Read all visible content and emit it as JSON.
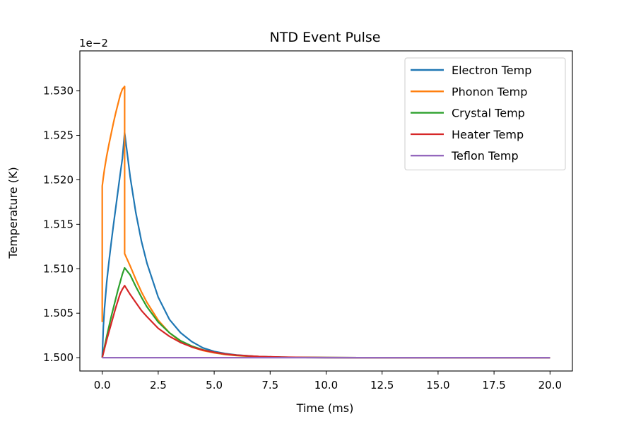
{
  "chart_data": {
    "type": "line",
    "title": "NTD Event Pulse",
    "xlabel": "Time (ms)",
    "ylabel": "Temperature (K)",
    "y_offset_label": "1e−2",
    "xlim": [
      -1.0,
      21.0
    ],
    "ylim": [
      1.4985,
      1.5345
    ],
    "x_ticks": [
      0.0,
      2.5,
      5.0,
      7.5,
      10.0,
      12.5,
      15.0,
      17.5,
      20.0
    ],
    "x_tick_labels": [
      "0.0",
      "2.5",
      "5.0",
      "7.5",
      "10.0",
      "12.5",
      "15.0",
      "17.5",
      "20.0"
    ],
    "y_ticks": [
      1.5,
      1.505,
      1.51,
      1.515,
      1.52,
      1.525,
      1.53
    ],
    "y_tick_labels": [
      "1.500",
      "1.505",
      "1.510",
      "1.515",
      "1.520",
      "1.525",
      "1.530"
    ],
    "grid": false,
    "legend_position": "top-right",
    "series": [
      {
        "name": "Electron Temp",
        "color": "#1f77b4",
        "x": [
          0,
          0.05,
          0.1,
          0.2,
          0.3,
          0.4,
          0.5,
          0.6,
          0.7,
          0.8,
          0.9,
          1.0,
          1.25,
          1.5,
          1.75,
          2.0,
          2.5,
          3.0,
          3.5,
          4.0,
          4.5,
          5.0,
          5.5,
          6.0,
          7.0,
          8.0,
          9.0,
          10.0,
          12.0,
          15.0,
          20.0
        ],
        "y": [
          1.5,
          1.5035,
          1.5055,
          1.5085,
          1.5108,
          1.5129,
          1.5149,
          1.5168,
          1.5187,
          1.5206,
          1.5224,
          1.5253,
          1.5203,
          1.5163,
          1.5131,
          1.5106,
          1.5068,
          1.5043,
          1.5028,
          1.5018,
          1.5011,
          1.5007,
          1.50046,
          1.5003,
          1.50012,
          1.50005,
          1.50002,
          1.50001,
          1.5,
          1.5,
          1.5
        ]
      },
      {
        "name": "Phonon Temp",
        "color": "#ff7f0e",
        "x": [
          0,
          0,
          0.05,
          0.1,
          0.2,
          0.3,
          0.4,
          0.5,
          0.6,
          0.7,
          0.8,
          0.9,
          1.0,
          1.0,
          1.25,
          1.5,
          1.75,
          2.0,
          2.5,
          3.0,
          3.5,
          4.0,
          4.5,
          5.0,
          5.5,
          6.0,
          7.0,
          8.0,
          9.0,
          10.0,
          12.0,
          15.0,
          20.0
        ],
        "y": [
          1.504,
          1.5193,
          1.5203,
          1.5212,
          1.5227,
          1.524,
          1.5252,
          1.5264,
          1.5275,
          1.5285,
          1.5295,
          1.5302,
          1.5305,
          1.5117,
          1.5103,
          1.5088,
          1.5074,
          1.5062,
          1.5042,
          1.5028,
          1.5018,
          1.5012,
          1.5008,
          1.50054,
          1.50036,
          1.50024,
          1.5001,
          1.50004,
          1.50002,
          1.50001,
          1.5,
          1.5,
          1.5
        ]
      },
      {
        "name": "Crystal Temp",
        "color": "#2ca02c",
        "x": [
          0,
          0.1,
          0.2,
          0.3,
          0.4,
          0.5,
          0.6,
          0.7,
          0.8,
          0.9,
          1.0,
          1.25,
          1.5,
          1.75,
          2.0,
          2.5,
          3.0,
          3.5,
          4.0,
          4.5,
          5.0,
          5.5,
          6.0,
          7.0,
          8.0,
          9.0,
          10.0,
          12.0,
          15.0,
          20.0
        ],
        "y": [
          1.5,
          1.5012,
          1.5024,
          1.5035,
          1.5046,
          1.5056,
          1.5066,
          1.5076,
          1.5085,
          1.5094,
          1.5101,
          1.5093,
          1.508,
          1.5068,
          1.5057,
          1.504,
          1.5028,
          1.5019,
          1.5013,
          1.50088,
          1.5006,
          1.5004,
          1.50027,
          1.50012,
          1.50005,
          1.50002,
          1.50001,
          1.5,
          1.5,
          1.5
        ]
      },
      {
        "name": "Heater Temp",
        "color": "#d62728",
        "x": [
          0,
          0.1,
          0.2,
          0.3,
          0.4,
          0.5,
          0.6,
          0.7,
          0.8,
          0.9,
          1.0,
          1.25,
          1.5,
          1.75,
          2.0,
          2.5,
          3.0,
          3.5,
          4.0,
          4.5,
          5.0,
          5.5,
          6.0,
          7.0,
          8.0,
          9.0,
          10.0,
          12.0,
          15.0,
          20.0
        ],
        "y": [
          1.5,
          1.501,
          1.502,
          1.5029,
          1.5038,
          1.5047,
          1.5056,
          1.5064,
          1.5072,
          1.5077,
          1.5081,
          1.5071,
          1.5062,
          1.5053,
          1.5046,
          1.5033,
          1.5024,
          1.5017,
          1.5012,
          1.50085,
          1.5006,
          1.5004,
          1.50028,
          1.50013,
          1.50006,
          1.50003,
          1.50001,
          1.5,
          1.5,
          1.5
        ]
      },
      {
        "name": "Teflon Temp",
        "color": "#9467bd",
        "x": [
          0,
          5,
          10,
          15,
          20
        ],
        "y": [
          1.5,
          1.5,
          1.5,
          1.5,
          1.5
        ]
      }
    ]
  }
}
